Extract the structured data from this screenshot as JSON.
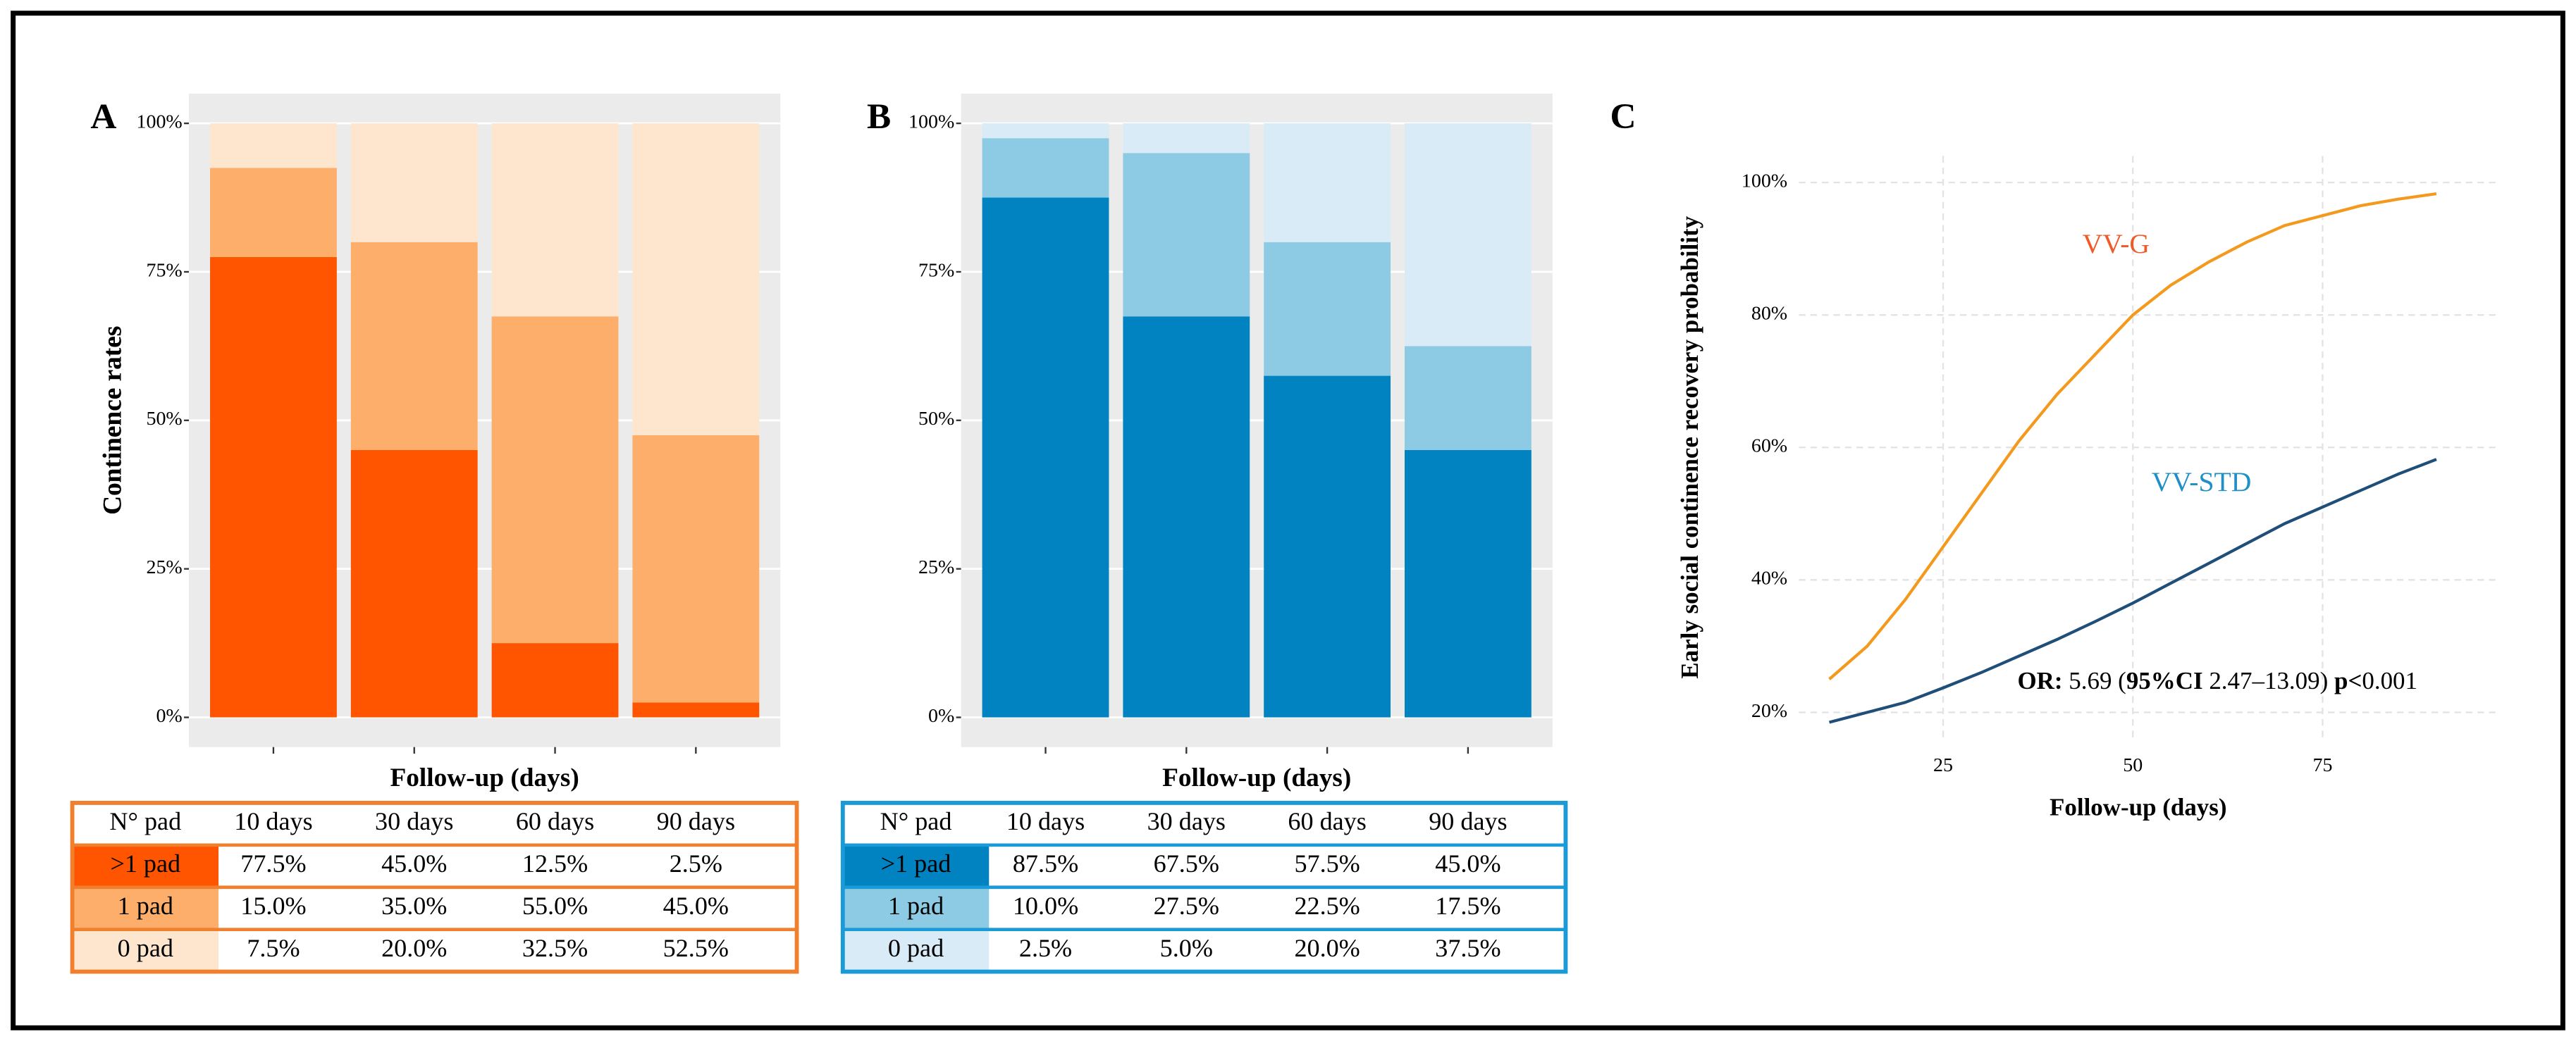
{
  "chart_data": [
    {
      "type": "bar",
      "stacked": true,
      "panel_label": "A",
      "ylabel": "Continence rates",
      "xlabel": "Follow-up (days)",
      "legend_title": "N° pad",
      "categories": [
        "10 days",
        "30 days",
        "60 days",
        "90 days"
      ],
      "ylim": [
        -5,
        105
      ],
      "grid": true,
      "table_border_color": "#f07f2e",
      "yticks": [
        {
          "value": 0,
          "label": "0%"
        },
        {
          "value": 25,
          "label": "25%"
        },
        {
          "value": 50,
          "label": "50%"
        },
        {
          "value": 75,
          "label": "75%"
        },
        {
          "value": 100,
          "label": "100%"
        }
      ],
      "series": [
        {
          "name": ">1 pad",
          "color": "#ff5500",
          "values": [
            77.5,
            45,
            12.5,
            2.5
          ],
          "value_labels": [
            "77.5%",
            "45.0%",
            "12.5%",
            "2.5%"
          ]
        },
        {
          "name": "1 pad",
          "color": "#fdae6b",
          "values": [
            15,
            35,
            55,
            45
          ],
          "value_labels": [
            "15.0%",
            "35.0%",
            "55.0%",
            "45.0%"
          ]
        },
        {
          "name": "0 pad",
          "color": "#fee6ce",
          "values": [
            7.5,
            20,
            32.5,
            52.5
          ],
          "value_labels": [
            "7.5%",
            "20.0%",
            "32.5%",
            "52.5%"
          ]
        }
      ]
    },
    {
      "type": "bar",
      "stacked": true,
      "panel_label": "B",
      "ylabel": "Continence rates",
      "xlabel": "Follow-up (days)",
      "legend_title": "N° pad",
      "categories": [
        "10 days",
        "30 days",
        "60 days",
        "90 days"
      ],
      "ylim": [
        -5,
        105
      ],
      "grid": true,
      "table_border_color": "#1a9ad6",
      "yticks": [
        {
          "value": 0,
          "label": "0%"
        },
        {
          "value": 25,
          "label": "25%"
        },
        {
          "value": 50,
          "label": "50%"
        },
        {
          "value": 75,
          "label": "75%"
        },
        {
          "value": 100,
          "label": "100%"
        }
      ],
      "series": [
        {
          "name": ">1 pad",
          "color": "#0083c0",
          "values": [
            87.5,
            67.5,
            57.5,
            45
          ],
          "value_labels": [
            "87.5%",
            "67.5%",
            "57.5%",
            "45.0%"
          ]
        },
        {
          "name": "1 pad",
          "color": "#8ccbe3",
          "values": [
            10,
            27.5,
            22.5,
            17.5
          ],
          "value_labels": [
            "10.0%",
            "27.5%",
            "22.5%",
            "17.5%"
          ]
        },
        {
          "name": "0 pad",
          "color": "#d9ebf7",
          "values": [
            2.5,
            5,
            20,
            37.5
          ],
          "value_labels": [
            "2.5%",
            "5.0%",
            "20.0%",
            "37.5%"
          ]
        }
      ]
    },
    {
      "type": "line",
      "panel_label": "C",
      "ylabel": "Early social continence recovery probability",
      "xlabel": "Follow-up (days)",
      "x": [
        10,
        15,
        20,
        25,
        30,
        35,
        40,
        45,
        50,
        55,
        60,
        65,
        70,
        75,
        80,
        85,
        90
      ],
      "xlim": [
        6,
        98
      ],
      "xticks": [
        25,
        50,
        75
      ],
      "ylim": [
        16,
        104
      ],
      "grid": true,
      "yticks": [
        {
          "value": 20,
          "label": "20%"
        },
        {
          "value": 40,
          "label": "40%"
        },
        {
          "value": 60,
          "label": "60%"
        },
        {
          "value": 80,
          "label": "80%"
        },
        {
          "value": 100,
          "label": "100%"
        }
      ],
      "series": [
        {
          "name": "VV-G",
          "color": "#f39a1e",
          "label_color": "#f05a28",
          "values": [
            25,
            30,
            37,
            45,
            53,
            61,
            68,
            74,
            80,
            84.5,
            88,
            91,
            93.5,
            95,
            96.5,
            97.5,
            98.3
          ]
        },
        {
          "name": "VV-STD",
          "color": "#1f4e79",
          "label_color": "#1f8fc6",
          "values": [
            18.5,
            20,
            21.5,
            23.7,
            26,
            28.5,
            31,
            33.7,
            36.5,
            39.5,
            42.5,
            45.5,
            48.5,
            51,
            53.5,
            56,
            58.2
          ]
        }
      ],
      "annotation": [
        {
          "text": "OR:",
          "bold": true
        },
        {
          "text": " 5.69 (",
          "bold": false
        },
        {
          "text": "95%CI",
          "bold": true
        },
        {
          "text": " 2.47–13.09) ",
          "bold": false
        },
        {
          "text": "p<",
          "bold": true
        },
        {
          "text": "0.001",
          "bold": false
        }
      ]
    }
  ]
}
